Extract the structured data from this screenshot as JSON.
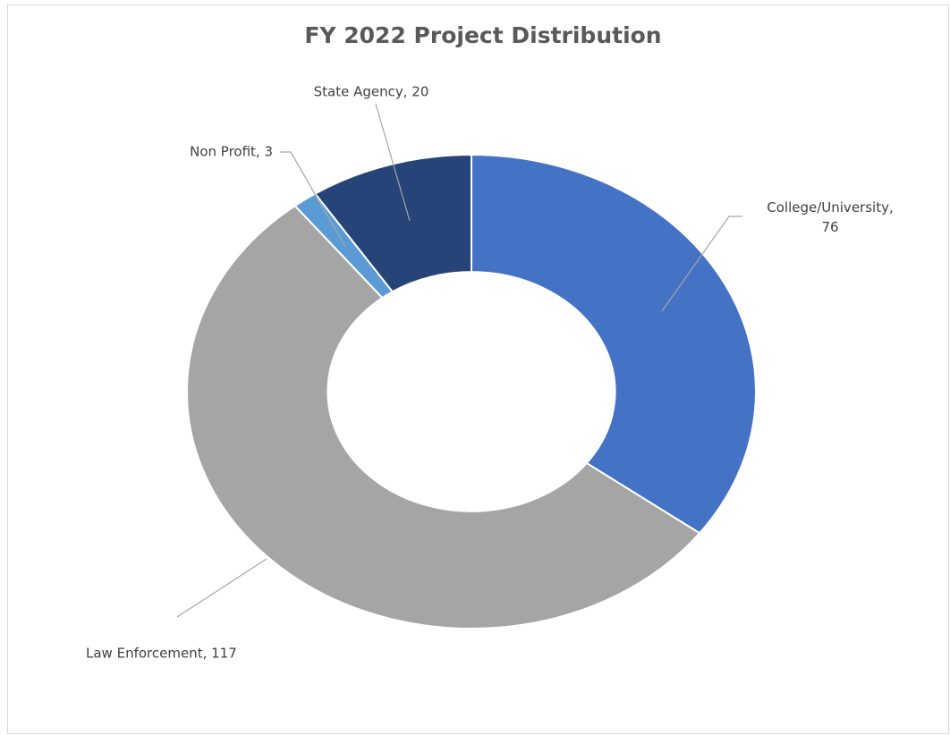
{
  "chart_data": {
    "type": "donut",
    "title": "FY 2022 Project Distribution",
    "values": [
      76,
      117,
      3,
      20
    ],
    "value_labels": [
      "College/University, 76",
      "Law Enforcement, 117",
      "Non Profit, 3",
      "State Agency, 20"
    ],
    "colors": [
      "#4472c4",
      "#a5a5a5",
      "#5b9bd5",
      "#264478"
    ]
  }
}
